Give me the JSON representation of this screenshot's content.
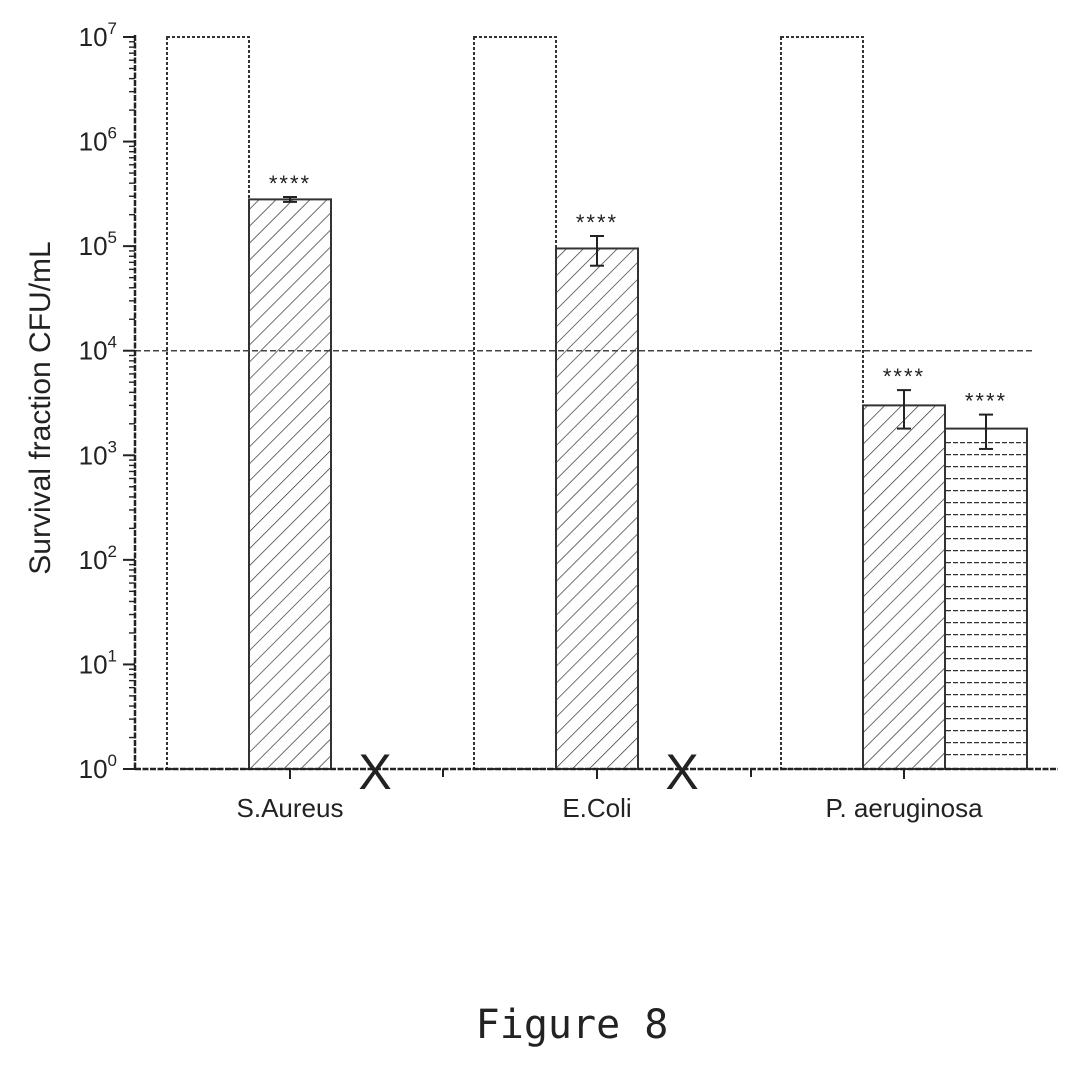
{
  "chart_data": {
    "type": "bar",
    "ylabel": "Survival fraction CFU/mL",
    "yscale": "log",
    "ylim": [
      1,
      10000000
    ],
    "y_tick_labels": [
      {
        "value": 1,
        "base": "10",
        "exp": "0"
      },
      {
        "value": 10,
        "base": "10",
        "exp": "1"
      },
      {
        "value": 100,
        "base": "10",
        "exp": "2"
      },
      {
        "value": 1000,
        "base": "10",
        "exp": "3"
      },
      {
        "value": 10000,
        "base": "10",
        "exp": "4"
      },
      {
        "value": 100000,
        "base": "10",
        "exp": "5"
      },
      {
        "value": 1000000,
        "base": "10",
        "exp": "6"
      },
      {
        "value": 10000000,
        "base": "10",
        "exp": "7"
      }
    ],
    "categories": [
      "S.Aureus",
      "E.Coli",
      "P. aeruginosa"
    ],
    "series": [
      {
        "pattern": "open",
        "values": [
          10000000,
          10000000,
          10000000
        ]
      },
      {
        "pattern": "diagonal-hatch",
        "values": [
          280000,
          95000,
          3000
        ],
        "error": [
          15000,
          30000,
          1200
        ],
        "annotations": [
          "****",
          "****",
          "****"
        ]
      },
      {
        "pattern": "horizontal-lines",
        "values": [
          null,
          null,
          1800
        ],
        "error": [
          null,
          null,
          650
        ],
        "annotations": [
          "",
          "",
          "****"
        ],
        "not_detected_marker": [
          "X",
          "X",
          ""
        ]
      }
    ],
    "reference_line": {
      "value": 10000,
      "style": "dashed"
    },
    "grid": false
  },
  "caption": "Figure 8"
}
